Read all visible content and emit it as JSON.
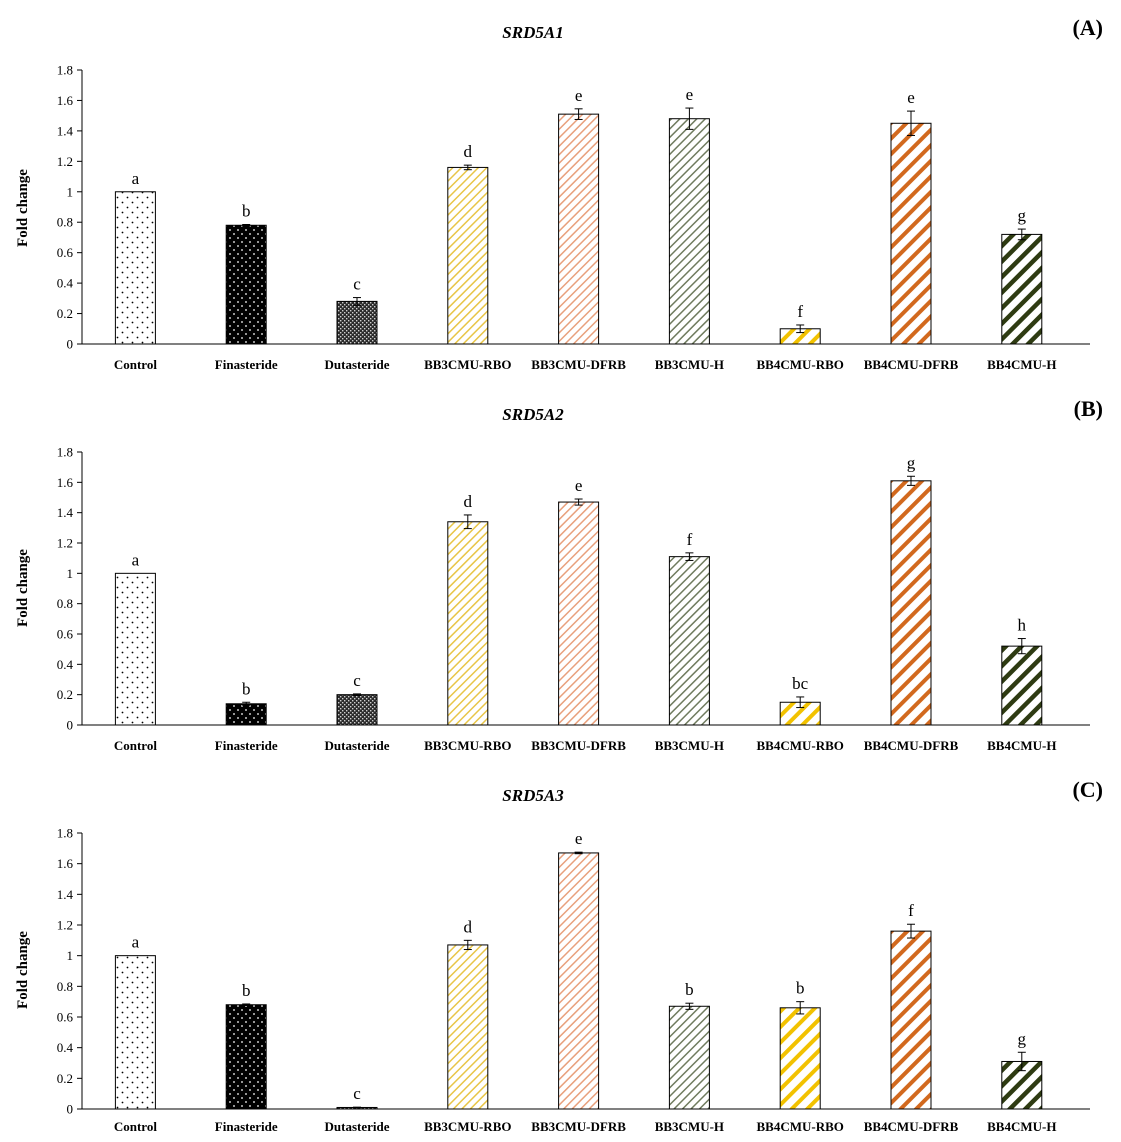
{
  "colors": {
    "black": "#000000",
    "control_fill": "#ffffff",
    "finasteride_fill": "#000000",
    "dutasteride_fill": "#3a3a3a",
    "bb3_rbo": "#e8c547",
    "bb3_dfrb": "#e8a07c",
    "bb3_h": "#7d8a6a",
    "bb4_rbo": "#f2c200",
    "bb4_dfrb": "#d2691e",
    "bb4_h": "#2e3b12"
  },
  "chart_data": [
    {
      "type": "bar",
      "panel": "(A)",
      "title": "SRD5A1",
      "ylabel": "Fold change",
      "xlabel": "",
      "ylim": [
        0,
        1.8
      ],
      "yticks": [
        "0",
        "0.2",
        "0.4",
        "0.6",
        "0.8",
        "1",
        "1.2",
        "1.4",
        "1.6",
        "1.8"
      ],
      "categories": [
        "Control",
        "Finasteride",
        "Dutasteride",
        "BB3CMU-RBO",
        "BB3CMU-DFRB",
        "BB3CMU-H",
        "BB4CMU-RBO",
        "BB4CMU-DFRB",
        "BB4CMU-H"
      ],
      "values": [
        1.0,
        0.78,
        0.28,
        1.16,
        1.51,
        1.48,
        0.1,
        1.45,
        0.72
      ],
      "errors": [
        0,
        0.005,
        0.025,
        0.015,
        0.035,
        0.07,
        0.025,
        0.08,
        0.035
      ],
      "letters": [
        "a",
        "b",
        "c",
        "d",
        "e",
        "e",
        "f",
        "e",
        "g"
      ]
    },
    {
      "type": "bar",
      "panel": "(B)",
      "title": "SRD5A2",
      "ylabel": "Fold change",
      "xlabel": "",
      "ylim": [
        0,
        1.8
      ],
      "yticks": [
        "0",
        "0.2",
        "0.4",
        "0.6",
        "0.8",
        "1",
        "1.2",
        "1.4",
        "1.6",
        "1.8"
      ],
      "categories": [
        "Control",
        "Finasteride",
        "Dutasteride",
        "BB3CMU-RBO",
        "BB3CMU-DFRB",
        "BB3CMU-H",
        "BB4CMU-RBO",
        "BB4CMU-DFRB",
        "BB4CMU-H"
      ],
      "values": [
        1.0,
        0.14,
        0.2,
        1.34,
        1.47,
        1.11,
        0.15,
        1.61,
        0.52
      ],
      "errors": [
        0,
        0.01,
        0.005,
        0.045,
        0.02,
        0.025,
        0.035,
        0.03,
        0.05
      ],
      "letters": [
        "a",
        "b",
        "c",
        "d",
        "e",
        "f",
        "bc",
        "g",
        "h"
      ]
    },
    {
      "type": "bar",
      "panel": "(C)",
      "title": "SRD5A3",
      "ylabel": "Fold change",
      "xlabel": "",
      "ylim": [
        0,
        1.8
      ],
      "yticks": [
        "0",
        "0.2",
        "0.4",
        "0.6",
        "0.8",
        "1",
        "1.2",
        "1.4",
        "1.6",
        "1.8"
      ],
      "categories": [
        "Control",
        "Finasteride",
        "Dutasteride",
        "BB3CMU-RBO",
        "BB3CMU-DFRB",
        "BB3CMU-H",
        "BB4CMU-RBO",
        "BB4CMU-DFRB",
        "BB4CMU-H"
      ],
      "values": [
        1.0,
        0.68,
        0.01,
        1.07,
        1.67,
        0.67,
        0.66,
        1.16,
        0.31
      ],
      "errors": [
        0,
        0.005,
        0.002,
        0.03,
        0.005,
        0.02,
        0.04,
        0.045,
        0.06
      ],
      "letters": [
        "a",
        "b",
        "c",
        "d",
        "e",
        "b",
        "b",
        "f",
        "g"
      ]
    }
  ]
}
